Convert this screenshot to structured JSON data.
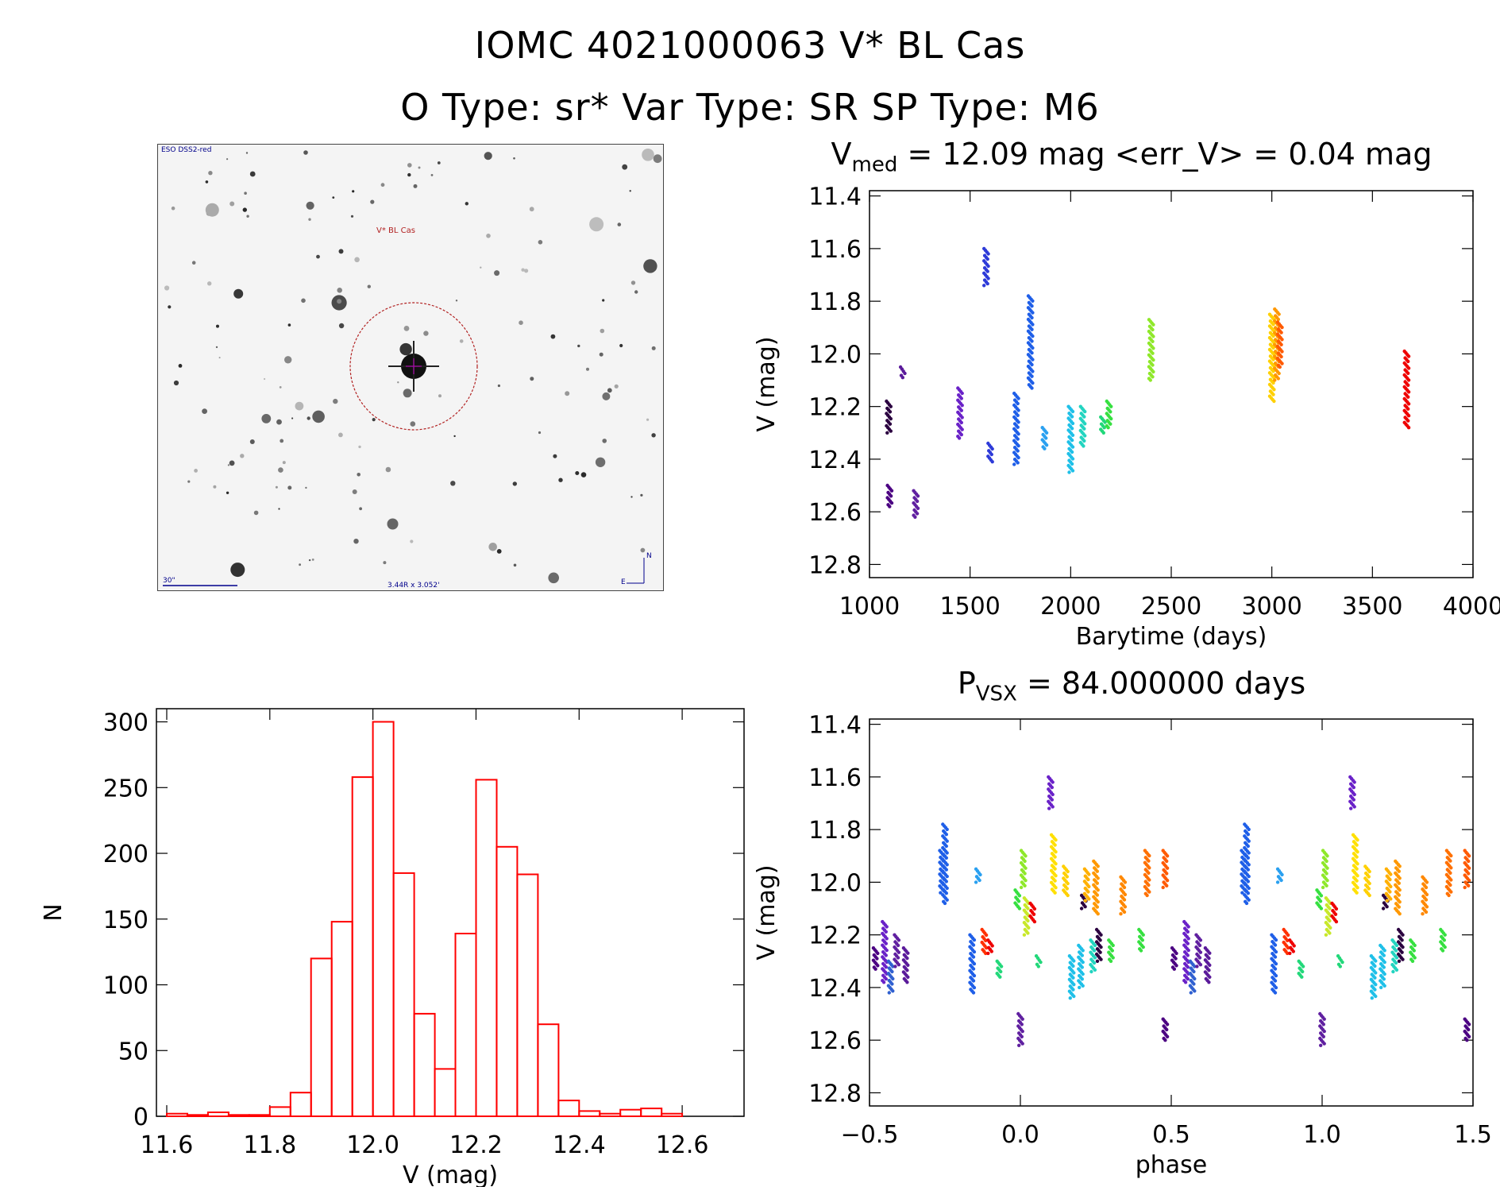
{
  "header": {
    "line1": "IOMC 4021000063   V* BL Cas",
    "line2": "O Type: sr*  Var Type: SR  SP Type: M6"
  },
  "finder": {
    "survey_label": "ESO DSS2-red",
    "target_label": "V* BL Cas",
    "scale_label": "30\"",
    "fov_label": "3.44R x 3.052'",
    "north_label": "N",
    "east_label": "E"
  },
  "colors": {
    "hist": "#ff0000",
    "circle": "#b22222",
    "axis": "#000000"
  },
  "chart_data": [
    {
      "id": "lightcurve",
      "type": "scatter",
      "title_main": "V",
      "title_sub": "med",
      "title_rest": " = 12.09 mag <err_V> = 0.04 mag",
      "xlabel": "Barytime (days)",
      "ylabel": "V (mag)",
      "xlim": [
        1000,
        4000
      ],
      "ylim": [
        12.85,
        11.38
      ],
      "xticks": [
        1000,
        1500,
        2000,
        2500,
        3000,
        3500,
        4000
      ],
      "yticks": [
        11.4,
        11.6,
        11.8,
        12.0,
        12.2,
        12.4,
        12.6,
        12.8
      ],
      "clusters": [
        {
          "x": 1095,
          "y": [
            12.18,
            12.3
          ],
          "color": "#2b0040"
        },
        {
          "x": 1100,
          "y": [
            12.5,
            12.58
          ],
          "color": "#4b0082"
        },
        {
          "x": 1165,
          "y": [
            12.05,
            12.09
          ],
          "color": "#5a1a9a"
        },
        {
          "x": 1230,
          "y": [
            12.52,
            12.62
          ],
          "color": "#6020a0"
        },
        {
          "x": 1450,
          "y": [
            12.13,
            12.32
          ],
          "color": "#6a22c8"
        },
        {
          "x": 1580,
          "y": [
            11.6,
            11.74
          ],
          "color": "#2e3bd8"
        },
        {
          "x": 1600,
          "y": [
            12.34,
            12.41
          ],
          "color": "#2e3bd8"
        },
        {
          "x": 1730,
          "y": [
            12.15,
            12.42
          ],
          "color": "#1f5fe8"
        },
        {
          "x": 1800,
          "y": [
            11.78,
            12.13
          ],
          "color": "#1f5fe8"
        },
        {
          "x": 1870,
          "y": [
            12.28,
            12.36
          ],
          "color": "#2aa0f0"
        },
        {
          "x": 2000,
          "y": [
            12.2,
            12.45
          ],
          "color": "#1fc0e8"
        },
        {
          "x": 2060,
          "y": [
            12.2,
            12.35
          ],
          "color": "#22d4c0"
        },
        {
          "x": 2160,
          "y": [
            12.24,
            12.3
          ],
          "color": "#22d87a"
        },
        {
          "x": 2190,
          "y": [
            12.18,
            12.28
          ],
          "color": "#36e040"
        },
        {
          "x": 2400,
          "y": [
            11.87,
            12.1
          ],
          "color": "#8fe82a"
        },
        {
          "x": 3000,
          "y": [
            11.85,
            12.18
          ],
          "color": "#ffd000"
        },
        {
          "x": 3025,
          "y": [
            11.83,
            12.1
          ],
          "color": "#ff9800"
        },
        {
          "x": 3040,
          "y": [
            11.88,
            12.05
          ],
          "color": "#ff5a00"
        },
        {
          "x": 3670,
          "y": [
            11.99,
            12.28
          ],
          "color": "#ee0000"
        }
      ]
    },
    {
      "id": "histogram",
      "type": "bar",
      "xlabel": "V (mag)",
      "ylabel": "N",
      "xlim": [
        11.58,
        12.72
      ],
      "ylim": [
        0,
        310
      ],
      "xticks": [
        11.6,
        11.8,
        12.0,
        12.2,
        12.4,
        12.6
      ],
      "yticks": [
        0,
        50,
        100,
        150,
        200,
        250,
        300
      ],
      "bin_width": 0.04,
      "bin_start": 11.6,
      "values": [
        2,
        1,
        3,
        1,
        1,
        7,
        18,
        120,
        148,
        258,
        300,
        185,
        78,
        36,
        139,
        256,
        205,
        184,
        70,
        12,
        4,
        2,
        5,
        6,
        2
      ]
    },
    {
      "id": "phased",
      "type": "scatter",
      "title_main": "P",
      "title_sub": "VSX",
      "title_rest": " = 84.000000 days",
      "xlabel": "phase",
      "ylabel": "V (mag)",
      "xlim": [
        -0.5,
        1.5
      ],
      "ylim": [
        12.85,
        11.38
      ],
      "xticks": [
        -0.5,
        0.0,
        0.5,
        1.0,
        1.5
      ],
      "yticks": [
        11.4,
        11.6,
        11.8,
        12.0,
        12.2,
        12.4,
        12.6,
        12.8
      ],
      "clusters": [
        {
          "x": -0.48,
          "y": [
            12.25,
            12.33
          ],
          "color": "#4b0082"
        },
        {
          "x": -0.45,
          "y": [
            12.15,
            12.38
          ],
          "color": "#6a22c8"
        },
        {
          "x": -0.43,
          "y": [
            12.3,
            12.42
          ],
          "color": "#3060d0"
        },
        {
          "x": -0.41,
          "y": [
            12.2,
            12.32
          ],
          "color": "#6020a0"
        },
        {
          "x": -0.38,
          "y": [
            12.25,
            12.38
          ],
          "color": "#5a1a9a"
        },
        {
          "x": -0.26,
          "y": [
            11.88,
            12.04
          ],
          "color": "#1f5fe8"
        },
        {
          "x": -0.25,
          "y": [
            11.78,
            12.08
          ],
          "color": "#1f5fe8"
        },
        {
          "x": -0.16,
          "y": [
            12.2,
            12.42
          ],
          "color": "#1f5fe8"
        },
        {
          "x": -0.14,
          "y": [
            11.95,
            12.0
          ],
          "color": "#2aa0f0"
        },
        {
          "x": -0.12,
          "y": [
            12.18,
            12.27
          ],
          "color": "#ff3000"
        },
        {
          "x": -0.1,
          "y": [
            12.22,
            12.27
          ],
          "color": "#ee0000"
        },
        {
          "x": -0.07,
          "y": [
            12.3,
            12.36
          ],
          "color": "#22d87a"
        },
        {
          "x": 0.0,
          "y": [
            12.5,
            12.62
          ],
          "color": "#6020a0"
        },
        {
          "x": -0.01,
          "y": [
            12.03,
            12.1
          ],
          "color": "#36e040"
        },
        {
          "x": 0.01,
          "y": [
            11.88,
            12.02
          ],
          "color": "#8fe82a"
        },
        {
          "x": 0.02,
          "y": [
            12.06,
            12.2
          ],
          "color": "#c8e82a"
        },
        {
          "x": 0.04,
          "y": [
            12.08,
            12.15
          ],
          "color": "#ee0000"
        },
        {
          "x": 0.06,
          "y": [
            12.28,
            12.32
          ],
          "color": "#22d87a"
        },
        {
          "x": 0.1,
          "y": [
            11.6,
            11.72
          ],
          "color": "#6a22c8"
        },
        {
          "x": 0.11,
          "y": [
            11.82,
            12.04
          ],
          "color": "#ffe000"
        },
        {
          "x": 0.15,
          "y": [
            11.94,
            12.05
          ],
          "color": "#ffd000"
        },
        {
          "x": 0.17,
          "y": [
            12.28,
            12.44
          ],
          "color": "#1fc0e8"
        },
        {
          "x": 0.2,
          "y": [
            12.24,
            12.4
          ],
          "color": "#1fc0e8"
        },
        {
          "x": 0.21,
          "y": [
            12.05,
            12.1
          ],
          "color": "#2b0040"
        },
        {
          "x": 0.22,
          "y": [
            11.95,
            12.07
          ],
          "color": "#ffb000"
        },
        {
          "x": 0.24,
          "y": [
            12.22,
            12.34
          ],
          "color": "#22d4c0"
        },
        {
          "x": 0.26,
          "y": [
            12.18,
            12.3
          ],
          "color": "#2b0040"
        },
        {
          "x": 0.25,
          "y": [
            11.92,
            12.12
          ],
          "color": "#ff9800"
        },
        {
          "x": 0.3,
          "y": [
            12.22,
            12.3
          ],
          "color": "#36e040"
        },
        {
          "x": 0.34,
          "y": [
            11.98,
            12.12
          ],
          "color": "#ff8800"
        },
        {
          "x": 0.4,
          "y": [
            12.18,
            12.26
          ],
          "color": "#36e040"
        },
        {
          "x": 0.42,
          "y": [
            11.88,
            12.05
          ],
          "color": "#ff7000"
        },
        {
          "x": 0.48,
          "y": [
            11.88,
            12.02
          ],
          "color": "#ff5a00"
        },
        {
          "x": 0.48,
          "y": [
            12.52,
            12.6
          ],
          "color": "#4b0082"
        },
        {
          "x": 0.51,
          "y": [
            12.25,
            12.33
          ],
          "color": "#4b0082"
        },
        {
          "x": 0.55,
          "y": [
            12.15,
            12.38
          ],
          "color": "#6a22c8"
        },
        {
          "x": 0.57,
          "y": [
            12.3,
            12.42
          ],
          "color": "#3060d0"
        },
        {
          "x": 0.59,
          "y": [
            12.2,
            12.32
          ],
          "color": "#6020a0"
        },
        {
          "x": 0.62,
          "y": [
            12.25,
            12.38
          ],
          "color": "#5a1a9a"
        },
        {
          "x": 0.74,
          "y": [
            11.88,
            12.04
          ],
          "color": "#1f5fe8"
        },
        {
          "x": 0.75,
          "y": [
            11.78,
            12.08
          ],
          "color": "#1f5fe8"
        },
        {
          "x": 0.84,
          "y": [
            12.2,
            12.42
          ],
          "color": "#1f5fe8"
        },
        {
          "x": 0.86,
          "y": [
            11.95,
            12.0
          ],
          "color": "#2aa0f0"
        },
        {
          "x": 0.88,
          "y": [
            12.18,
            12.27
          ],
          "color": "#ff3000"
        },
        {
          "x": 0.9,
          "y": [
            12.22,
            12.27
          ],
          "color": "#ee0000"
        },
        {
          "x": 0.93,
          "y": [
            12.3,
            12.36
          ],
          "color": "#22d87a"
        },
        {
          "x": 1.0,
          "y": [
            12.5,
            12.62
          ],
          "color": "#6020a0"
        },
        {
          "x": 0.99,
          "y": [
            12.03,
            12.1
          ],
          "color": "#36e040"
        },
        {
          "x": 1.01,
          "y": [
            11.88,
            12.02
          ],
          "color": "#8fe82a"
        },
        {
          "x": 1.02,
          "y": [
            12.06,
            12.2
          ],
          "color": "#c8e82a"
        },
        {
          "x": 1.04,
          "y": [
            12.08,
            12.15
          ],
          "color": "#ee0000"
        },
        {
          "x": 1.06,
          "y": [
            12.28,
            12.32
          ],
          "color": "#22d87a"
        },
        {
          "x": 1.1,
          "y": [
            11.6,
            11.72
          ],
          "color": "#6a22c8"
        },
        {
          "x": 1.11,
          "y": [
            11.82,
            12.04
          ],
          "color": "#ffe000"
        },
        {
          "x": 1.15,
          "y": [
            11.94,
            12.05
          ],
          "color": "#ffd000"
        },
        {
          "x": 1.17,
          "y": [
            12.28,
            12.44
          ],
          "color": "#1fc0e8"
        },
        {
          "x": 1.2,
          "y": [
            12.24,
            12.4
          ],
          "color": "#1fc0e8"
        },
        {
          "x": 1.21,
          "y": [
            12.05,
            12.1
          ],
          "color": "#2b0040"
        },
        {
          "x": 1.22,
          "y": [
            11.95,
            12.07
          ],
          "color": "#ffb000"
        },
        {
          "x": 1.24,
          "y": [
            12.22,
            12.34
          ],
          "color": "#22d4c0"
        },
        {
          "x": 1.26,
          "y": [
            12.18,
            12.3
          ],
          "color": "#2b0040"
        },
        {
          "x": 1.25,
          "y": [
            11.92,
            12.12
          ],
          "color": "#ff9800"
        },
        {
          "x": 1.3,
          "y": [
            12.22,
            12.3
          ],
          "color": "#36e040"
        },
        {
          "x": 1.34,
          "y": [
            11.98,
            12.12
          ],
          "color": "#ff8800"
        },
        {
          "x": 1.4,
          "y": [
            12.18,
            12.26
          ],
          "color": "#36e040"
        },
        {
          "x": 1.42,
          "y": [
            11.88,
            12.05
          ],
          "color": "#ff7000"
        },
        {
          "x": 1.48,
          "y": [
            11.88,
            12.02
          ],
          "color": "#ff5a00"
        },
        {
          "x": 1.48,
          "y": [
            12.52,
            12.6
          ],
          "color": "#4b0082"
        }
      ]
    }
  ]
}
